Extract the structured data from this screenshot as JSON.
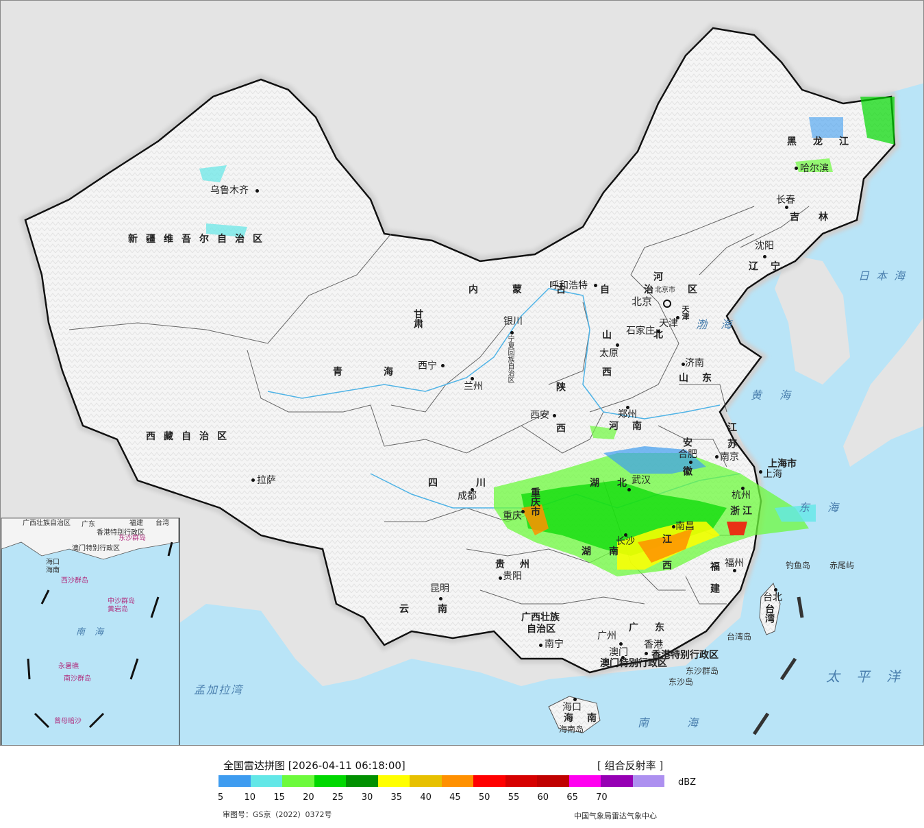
{
  "colors": {
    "sea": "#b9e4f7",
    "land_outside": "#e4e4e4",
    "china_land": "#f4f4f4",
    "border": "#111111",
    "province_border": "#555555",
    "river": "#4fb3e6"
  },
  "provinces": {
    "xinjiang": "新疆维吾尔自治区",
    "xizang": "西藏自治区",
    "qinghai": "青海",
    "gansu": "甘肃",
    "neimenggu": "内蒙古自治区",
    "heilongjiang": "黑龙江",
    "jilin": "吉林",
    "liaoning": "辽宁",
    "hebei": "河北",
    "shanxi": "山西",
    "shaanxi": "陕西",
    "henan": "河南",
    "shandong": "山东",
    "jiangsu": "江苏",
    "anhui": "安徽",
    "hubei": "湖北",
    "hunan": "湖南",
    "jiangxi": "江西",
    "zhejiang": "浙江",
    "fujian": "福建",
    "guangdong": "广东",
    "guangxi_1": "广西壮族",
    "guangxi_2": "自治区",
    "guizhou": "贵州",
    "yunnan": "云南",
    "sichuan": "四川",
    "chongqing": "重庆市",
    "hainan": "海南",
    "taiwan": "台湾",
    "ningxia": "宁夏回族自治区",
    "shanghai": "上海市",
    "beijing": "北京市",
    "tianjin": "天津",
    "hk": "香港特别行政区",
    "macau": "澳门特别行政区"
  },
  "cities": {
    "urumqi": "乌鲁木齐",
    "lhasa": "拉萨",
    "xining": "西宁",
    "lanzhou": "兰州",
    "yinchuan": "银川",
    "hohhot": "呼和浩特",
    "harbin": "哈尔滨",
    "changchun": "长春",
    "shenyang": "沈阳",
    "beijing": "北京",
    "tianjin": "天津",
    "shijiazhuang": "石家庄",
    "taiyuan": "太原",
    "jinan": "济南",
    "zhengzhou": "郑州",
    "xian": "西安",
    "hefei": "合肥",
    "nanjing": "南京",
    "shanghai": "上海",
    "hangzhou": "杭州",
    "wuhan": "武汉",
    "chengdu": "成都",
    "chongqing": "重庆",
    "nanchang": "南昌",
    "changsha": "长沙",
    "fuzhou": "福州",
    "guiyang": "贵阳",
    "kunming": "昆明",
    "nanning": "南宁",
    "guangzhou": "广州",
    "hongkong": "香港",
    "macau": "澳门",
    "haikou": "海口",
    "taipei": "台北"
  },
  "seas": {
    "japan_sea": "日本海",
    "bohai": "渤海",
    "yellow_sea": "黄海",
    "east_sea": "东海",
    "pacific": "太平洋",
    "south_sea": "南海",
    "bengal": "孟加拉湾",
    "inset_south_sea": "南海"
  },
  "islands": {
    "diaoyu": "钓鱼岛",
    "chiwei": "赤尾屿",
    "taiwan_island": "台湾岛",
    "dongsha": "东沙群岛",
    "dongsha_dao": "东沙岛",
    "hainan_island": "海南岛"
  },
  "inset": {
    "labels": [
      "广西壮族自治区",
      "广东",
      "福建",
      "台湾",
      "香港特别行政区",
      "澳门特别行政区",
      "海口",
      "海南",
      "西沙群岛",
      "中沙群岛",
      "南沙群岛",
      "东沙群岛",
      "黄岩岛",
      "永暑礁",
      "曾母暗沙"
    ]
  },
  "legend": {
    "title": "全国雷达拼图 [2026-04-11 06:18:00]",
    "product": "[ 组合反射率 ]",
    "unit": "dBZ",
    "ticks": [
      "5",
      "10",
      "15",
      "20",
      "25",
      "30",
      "35",
      "40",
      "45",
      "50",
      "55",
      "60",
      "65",
      "70"
    ],
    "colors": [
      "#3e9cf0",
      "#63e7e7",
      "#6dfa3d",
      "#00d800",
      "#019001",
      "#ffff00",
      "#e7c000",
      "#ff9000",
      "#ff0000",
      "#d60000",
      "#c00000",
      "#ff00f0",
      "#9600b4",
      "#ad90f0"
    ],
    "approval": "审图号：GS京（2022）0372号",
    "agency": "中国气象局雷达气象中心"
  }
}
